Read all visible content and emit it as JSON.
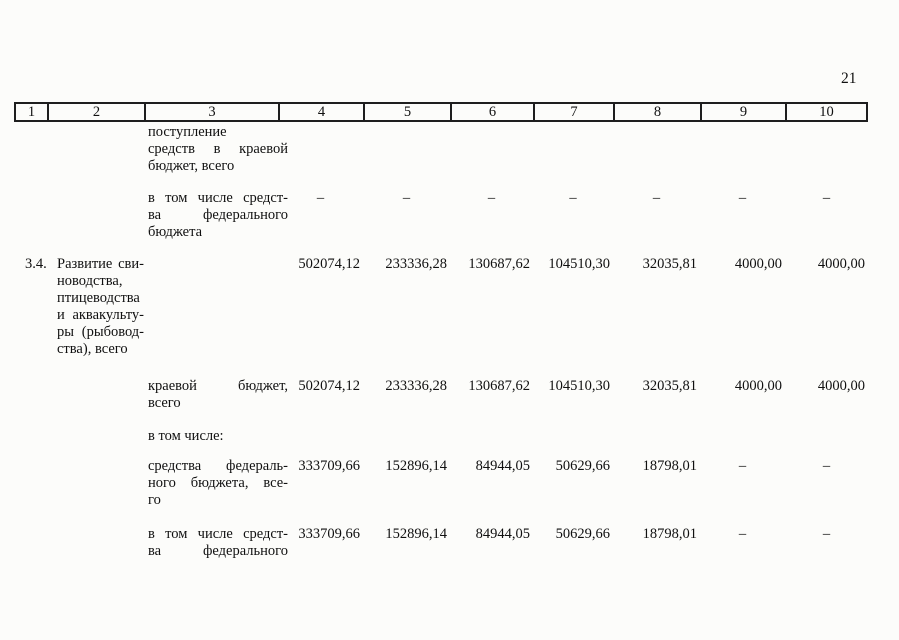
{
  "page": {
    "number": "21"
  },
  "table": {
    "header": [
      "1",
      "2",
      "3",
      "4",
      "5",
      "6",
      "7",
      "8",
      "9",
      "10"
    ]
  },
  "rows": [
    {
      "lines": [
        "поступление",
        "средств в краевой",
        "бюджет, всего"
      ]
    },
    {
      "lines": [
        "в том числе средст-",
        "ва федерального",
        "бюджета"
      ],
      "values": [
        "–",
        "–",
        "–",
        "–",
        "–",
        "–",
        "–"
      ]
    },
    {
      "num": "3.4.",
      "lines": [
        "Развитие сви-",
        "новодства,",
        "птицеводства",
        "и аквакульту-",
        "ры (рыбовод-",
        "ства), всего"
      ],
      "values": [
        "502074,12",
        "233336,28",
        "130687,62",
        "104510,30",
        "32035,81",
        "4000,00",
        "4000,00"
      ]
    },
    {
      "lines": [
        "краевой бюджет,",
        "всего"
      ],
      "values": [
        "502074,12",
        "233336,28",
        "130687,62",
        "104510,30",
        "32035,81",
        "4000,00",
        "4000,00"
      ]
    },
    {
      "lines": [
        "в том числе:"
      ]
    },
    {
      "lines": [
        "средства федераль-",
        "ного бюджета, все-",
        "го"
      ],
      "values": [
        "333709,66",
        "152896,14",
        "84944,05",
        "50629,66",
        "18798,01",
        "–",
        "–"
      ]
    },
    {
      "lines": [
        "в том числе средст-",
        "ва федерального"
      ],
      "values": [
        "333709,66",
        "152896,14",
        "84944,05",
        "50629,66",
        "18798,01",
        "–",
        "–"
      ]
    }
  ]
}
